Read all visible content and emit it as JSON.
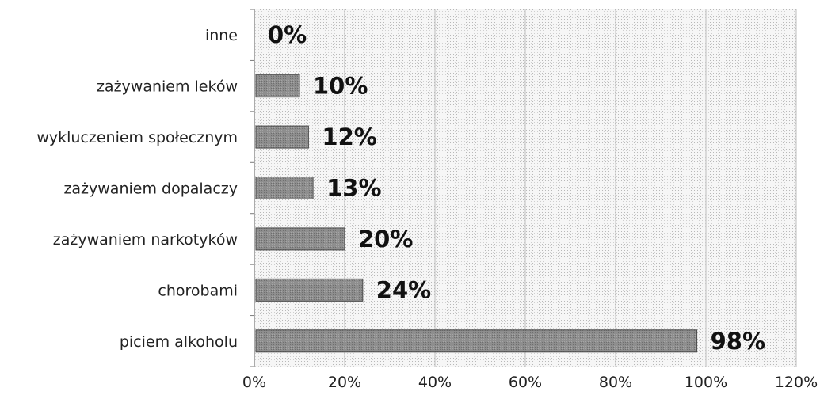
{
  "chart_data": {
    "type": "bar",
    "orientation": "horizontal",
    "categories": [
      "inne",
      "zażywaniem leków",
      "wykluczeniem społecznym",
      "zażywaniem dopalaczy",
      "zażywaniem narkotyków",
      "chorobami",
      "piciem alkoholu"
    ],
    "values": [
      0,
      10,
      12,
      13,
      20,
      24,
      98
    ],
    "data_labels": [
      "0%",
      "10%",
      "12%",
      "13%",
      "20%",
      "24%",
      "98%"
    ],
    "x_tick_labels": [
      "0%",
      "20%",
      "40%",
      "60%",
      "80%",
      "100%",
      "120%"
    ],
    "xlim": [
      0,
      120
    ],
    "grid": true,
    "legend": "none",
    "colors": {
      "bar_fill": "#8c8c8c",
      "bar_stroke": "#4a4a4a",
      "plot_background": "#e9e9e9",
      "grid": "#bdbdbd"
    }
  }
}
